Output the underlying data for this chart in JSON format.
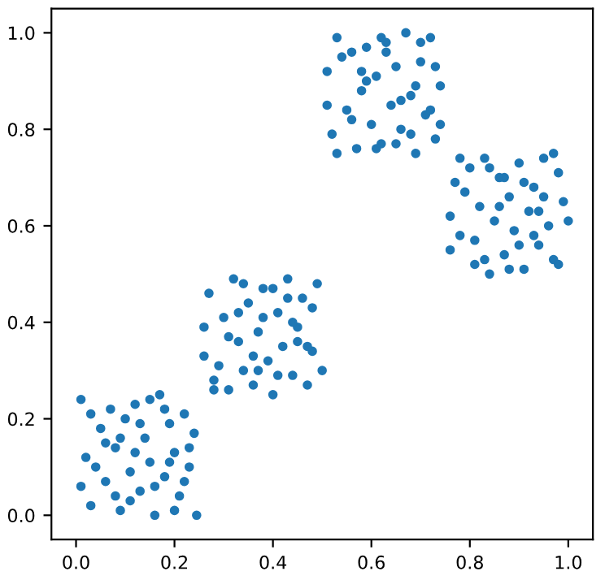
{
  "chart_data": {
    "type": "scatter",
    "marker": "circle",
    "grid": false,
    "xlim": [
      -0.05,
      1.05
    ],
    "ylim": [
      -0.05,
      1.05
    ],
    "xticks": [
      {
        "value": 0,
        "label": "0.0"
      },
      {
        "value": 0.2,
        "label": "0.2"
      },
      {
        "value": 0.4,
        "label": "0.4"
      },
      {
        "value": 0.6,
        "label": "0.6"
      },
      {
        "value": 0.8,
        "label": "0.8"
      },
      {
        "value": 1,
        "label": "1.0"
      }
    ],
    "yticks": [
      {
        "value": 0,
        "label": "0.0"
      },
      {
        "value": 0.2,
        "label": "0.2"
      },
      {
        "value": 0.4,
        "label": "0.4"
      },
      {
        "value": 0.6,
        "label": "0.6"
      },
      {
        "value": 0.8,
        "label": "0.8"
      },
      {
        "value": 1,
        "label": "1.0"
      }
    ],
    "series": [
      {
        "color": "#1f77b4",
        "x": [
          0.01,
          0.02,
          0.03,
          0.05,
          0.06,
          0.07,
          0.08,
          0.09,
          0.1,
          0.11,
          0.12,
          0.13,
          0.14,
          0.15,
          0.16,
          0.17,
          0.18,
          0.19,
          0.2,
          0.21,
          0.22,
          0.23,
          0.24,
          0.01,
          0.04,
          0.06,
          0.09,
          0.11,
          0.13,
          0.16,
          0.18,
          0.2,
          0.23,
          0.245,
          0.03,
          0.08,
          0.12,
          0.15,
          0.19,
          0.22
        ],
        "values": [
          0.24,
          0.12,
          0.02,
          0.18,
          0.07,
          0.22,
          0.14,
          0.01,
          0.2,
          0.09,
          0.23,
          0.05,
          0.16,
          0.11,
          0.0,
          0.25,
          0.08,
          0.19,
          0.13,
          0.04,
          0.21,
          0.1,
          0.17,
          0.06,
          0.1,
          0.15,
          0.16,
          0.03,
          0.19,
          0.06,
          0.22,
          0.01,
          0.14,
          0.0,
          0.21,
          0.04,
          0.13,
          0.24,
          0.11,
          0.07
        ]
      },
      {
        "color": "#1f77b4",
        "x": [
          0.26,
          0.27,
          0.28,
          0.3,
          0.31,
          0.32,
          0.33,
          0.34,
          0.35,
          0.36,
          0.37,
          0.38,
          0.39,
          0.4,
          0.41,
          0.42,
          0.43,
          0.44,
          0.45,
          0.46,
          0.47,
          0.48,
          0.49,
          0.26,
          0.29,
          0.31,
          0.34,
          0.36,
          0.38,
          0.41,
          0.43,
          0.45,
          0.48,
          0.5,
          0.28,
          0.33,
          0.37,
          0.4,
          0.44,
          0.47
        ],
        "values": [
          0.33,
          0.46,
          0.28,
          0.41,
          0.26,
          0.49,
          0.36,
          0.3,
          0.44,
          0.27,
          0.38,
          0.47,
          0.32,
          0.25,
          0.42,
          0.35,
          0.49,
          0.29,
          0.39,
          0.45,
          0.27,
          0.34,
          0.48,
          0.39,
          0.31,
          0.37,
          0.48,
          0.33,
          0.41,
          0.29,
          0.45,
          0.36,
          0.43,
          0.3,
          0.26,
          0.42,
          0.3,
          0.47,
          0.4,
          0.35
        ]
      },
      {
        "color": "#1f77b4",
        "x": [
          0.51,
          0.52,
          0.53,
          0.55,
          0.56,
          0.57,
          0.58,
          0.59,
          0.6,
          0.61,
          0.62,
          0.63,
          0.64,
          0.65,
          0.66,
          0.67,
          0.68,
          0.69,
          0.7,
          0.71,
          0.72,
          0.73,
          0.74,
          0.51,
          0.54,
          0.56,
          0.59,
          0.61,
          0.63,
          0.66,
          0.68,
          0.7,
          0.73,
          0.74,
          0.53,
          0.58,
          0.62,
          0.65,
          0.69,
          0.72
        ],
        "values": [
          0.92,
          0.79,
          0.99,
          0.84,
          0.96,
          0.76,
          0.88,
          0.97,
          0.81,
          0.91,
          0.77,
          0.98,
          0.85,
          0.93,
          0.8,
          1.0,
          0.87,
          0.75,
          0.94,
          0.83,
          0.99,
          0.78,
          0.89,
          0.85,
          0.95,
          0.82,
          0.9,
          0.76,
          0.96,
          0.86,
          0.79,
          0.98,
          0.93,
          0.81,
          0.75,
          0.92,
          0.99,
          0.77,
          0.89,
          0.84
        ]
      },
      {
        "color": "#1f77b4",
        "x": [
          0.76,
          0.77,
          0.78,
          0.8,
          0.81,
          0.82,
          0.83,
          0.84,
          0.85,
          0.86,
          0.87,
          0.88,
          0.89,
          0.9,
          0.91,
          0.92,
          0.93,
          0.94,
          0.95,
          0.96,
          0.97,
          0.98,
          0.99,
          0.76,
          0.79,
          0.81,
          0.84,
          0.86,
          0.88,
          0.91,
          0.93,
          0.95,
          0.98,
          1.0,
          0.78,
          0.83,
          0.87,
          0.9,
          0.94,
          0.97
        ],
        "values": [
          0.55,
          0.69,
          0.58,
          0.72,
          0.52,
          0.64,
          0.74,
          0.5,
          0.61,
          0.7,
          0.54,
          0.66,
          0.59,
          0.73,
          0.51,
          0.63,
          0.68,
          0.56,
          0.74,
          0.6,
          0.53,
          0.71,
          0.65,
          0.62,
          0.67,
          0.57,
          0.72,
          0.64,
          0.51,
          0.69,
          0.58,
          0.66,
          0.52,
          0.61,
          0.74,
          0.53,
          0.7,
          0.56,
          0.63,
          0.75
        ]
      }
    ]
  }
}
